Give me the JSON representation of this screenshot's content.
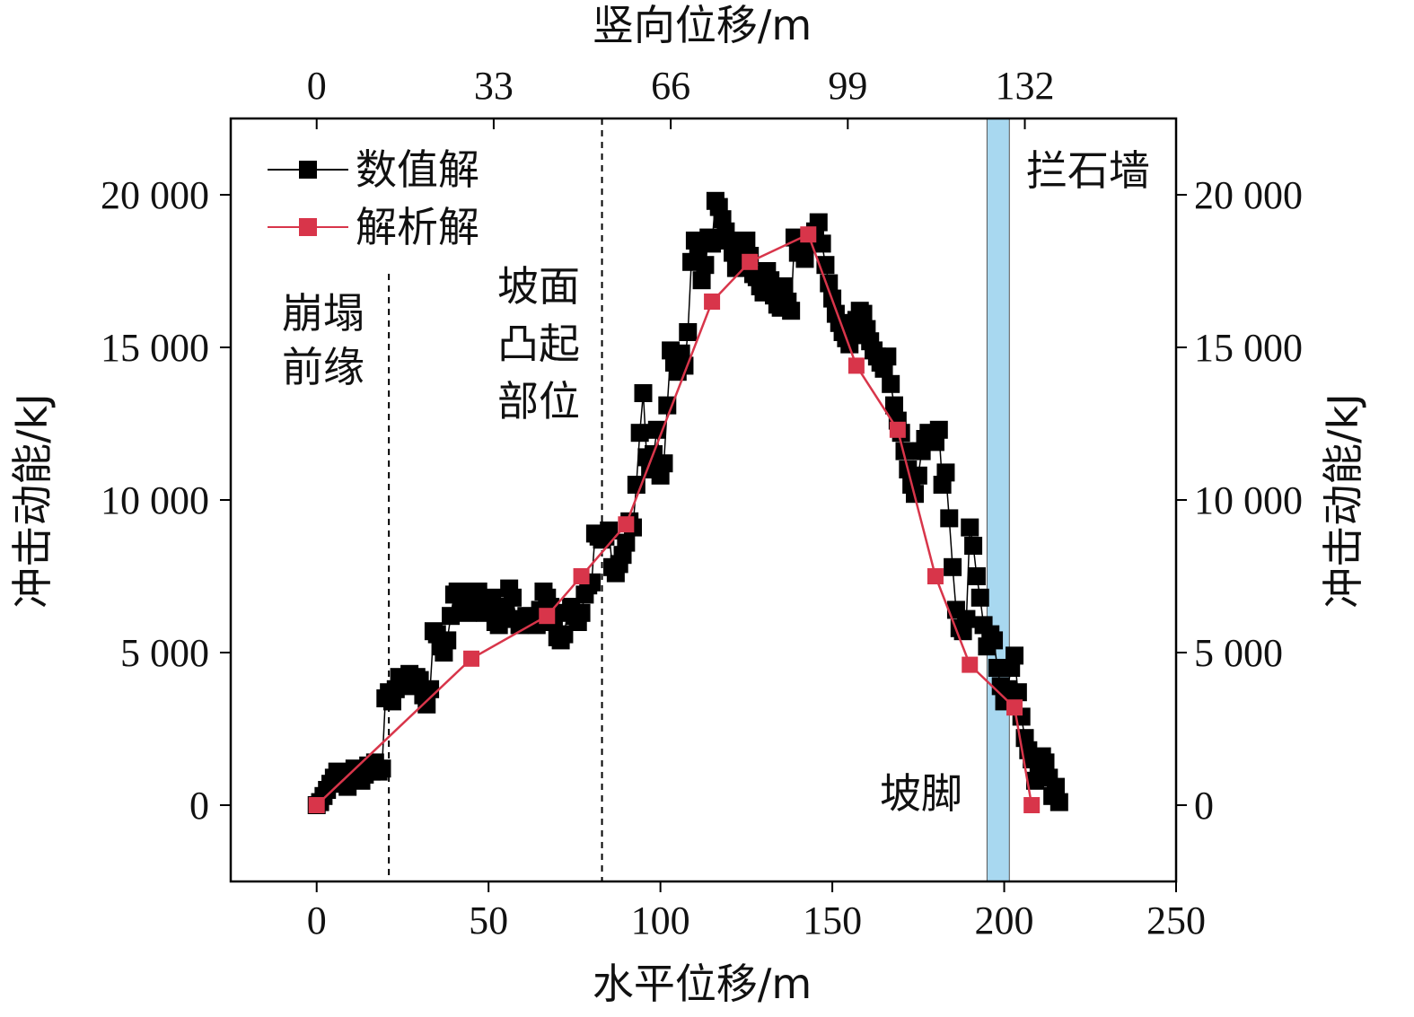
{
  "chart_data": {
    "type": "line",
    "xlabel": "水平位移/m",
    "x2label": "竖向位移/m",
    "ylabel": "冲击动能/kJ",
    "y2label": "冲击动能/kJ",
    "xlim": [
      -25,
      250
    ],
    "ylim": [
      -2500,
      22500
    ],
    "x_ticks": [
      0,
      50,
      100,
      150,
      200,
      250
    ],
    "x_tick_labels": [
      "0",
      "50",
      "100",
      "150",
      "200",
      "250"
    ],
    "x2_ticks_at_x": [
      0,
      51.5,
      103,
      154.5,
      206
    ],
    "x2_tick_labels": [
      "0",
      "33",
      "66",
      "99",
      "132"
    ],
    "y_ticks": [
      0,
      5000,
      10000,
      15000,
      20000
    ],
    "y_tick_labels": [
      "0",
      "5 000",
      "10 000",
      "15 000",
      "20 000"
    ],
    "grid": false,
    "legend_position": "top-left",
    "colors": {
      "numerical": "#000000",
      "analytical": "#d8354a",
      "wall_band": "#a8d8f0"
    },
    "series": [
      {
        "name": "数值解",
        "x": [
          0,
          1,
          2,
          3,
          4,
          5,
          6,
          7,
          8,
          9,
          10,
          11,
          12,
          13,
          14,
          15,
          16,
          17,
          18,
          19,
          20,
          21,
          22,
          23,
          24,
          25,
          26,
          27,
          28,
          29,
          30,
          31,
          32,
          33,
          34,
          35,
          36,
          37,
          38,
          39,
          40,
          41,
          42,
          43,
          44,
          45,
          46,
          47,
          48,
          49,
          50,
          51,
          52,
          53,
          54,
          55,
          56,
          57,
          58,
          59,
          60,
          61,
          62,
          63,
          64,
          65,
          66,
          67,
          68,
          69,
          70,
          71,
          72,
          73,
          74,
          75,
          76,
          77,
          78,
          79,
          80,
          81,
          82,
          83,
          84,
          85,
          86,
          87,
          88,
          89,
          90,
          91,
          92,
          93,
          94,
          95,
          96,
          97,
          98,
          99,
          100,
          101,
          102,
          103,
          104,
          105,
          106,
          107,
          108,
          109,
          110,
          111,
          112,
          113,
          114,
          115,
          116,
          117,
          118,
          119,
          120,
          121,
          122,
          123,
          124,
          125,
          126,
          127,
          128,
          129,
          130,
          131,
          132,
          133,
          134,
          135,
          136,
          137,
          138,
          139,
          140,
          141,
          142,
          143,
          144,
          145,
          146,
          147,
          148,
          149,
          150,
          151,
          152,
          153,
          154,
          155,
          156,
          157,
          158,
          159,
          160,
          161,
          162,
          163,
          164,
          165,
          166,
          167,
          168,
          169,
          170,
          171,
          172,
          173,
          174,
          175,
          176,
          177,
          178,
          179,
          180,
          181,
          182,
          183,
          184,
          185,
          186,
          187,
          188,
          189,
          190,
          191,
          192,
          193,
          194,
          195,
          196,
          197,
          198,
          199,
          200,
          201,
          202,
          203,
          204,
          205,
          206,
          207,
          208,
          209,
          210,
          211,
          212,
          213,
          214,
          215,
          216
        ],
        "values": [
          0,
          100,
          300,
          500,
          700,
          900,
          1100,
          1000,
          800,
          600,
          900,
          1200,
          1100,
          800,
          1000,
          1300,
          1100,
          1400,
          1100,
          1200,
          3500,
          3700,
          3400,
          3800,
          4200,
          4100,
          3900,
          4300,
          4000,
          4200,
          4100,
          3600,
          3300,
          3800,
          5700,
          5600,
          5200,
          5000,
          5400,
          6200,
          6900,
          7000,
          6700,
          6600,
          6300,
          6800,
          7000,
          7000,
          6500,
          6300,
          6700,
          6800,
          6000,
          5900,
          6200,
          6500,
          7100,
          6800,
          6100,
          5900,
          6000,
          6200,
          6000,
          6100,
          5900,
          6400,
          7000,
          6800,
          6500,
          6000,
          5500,
          5400,
          5600,
          6300,
          6500,
          6200,
          6000,
          6300,
          6900,
          7200,
          7300,
          8900,
          8800,
          8700,
          8800,
          9000,
          7800,
          7600,
          7900,
          8200,
          8600,
          9300,
          9100,
          10500,
          12200,
          13500,
          11400,
          11000,
          11500,
          12300,
          10800,
          11200,
          13100,
          14900,
          14500,
          14200,
          14800,
          14400,
          15500,
          17800,
          18500,
          18100,
          17200,
          17700,
          18600,
          18400,
          19800,
          19600,
          19200,
          18800,
          18500,
          18100,
          17600,
          17900,
          18200,
          18500,
          18000,
          17400,
          17300,
          17000,
          16800,
          17500,
          17200,
          16700,
          16400,
          16300,
          17000,
          16500,
          16200,
          18600,
          18100,
          18300,
          17900,
          18400,
          18600,
          18800,
          19100,
          18400,
          17700,
          17100,
          16600,
          16100,
          15800,
          15500,
          15300,
          15100,
          15400,
          15900,
          16200,
          16100,
          15600,
          15200,
          14900,
          14700,
          14500,
          14300,
          14700,
          13800,
          13100,
          12600,
          12200,
          11600,
          11000,
          10500,
          10200,
          10800,
          11600,
          12000,
          12200,
          12100,
          11900,
          12300,
          10500,
          10900,
          9400,
          7800,
          6400,
          5800,
          5700,
          6100,
          9100,
          8500,
          7500,
          6800,
          5900,
          5200,
          5600,
          5400,
          4500,
          3900,
          3400,
          3800,
          4500,
          4900,
          3700,
          2900,
          2200,
          1800,
          1500,
          800,
          1000,
          1600,
          1400,
          900,
          300,
          600,
          100
        ]
      },
      {
        "name": "解析解",
        "x": [
          0,
          45,
          67,
          77,
          90,
          115,
          126,
          143,
          157,
          169,
          180,
          190,
          203,
          208
        ],
        "values": [
          0,
          4800,
          6200,
          7500,
          9200,
          16500,
          17800,
          18700,
          14400,
          12300,
          7500,
          4600,
          3200,
          0
        ]
      }
    ],
    "annotations": [
      {
        "text": [
          "崩塌",
          "前缘"
        ],
        "at_x": 21
      },
      {
        "text": [
          "坡面",
          "凸起",
          "部位"
        ],
        "at_x": 83
      },
      {
        "text": [
          "坡脚"
        ],
        "at_x": 178
      },
      {
        "text": [
          "拦石墙"
        ],
        "at_x": 224
      }
    ],
    "vlines_dashed": [
      21,
      83
    ],
    "wall_band": [
      195,
      201.5
    ]
  }
}
